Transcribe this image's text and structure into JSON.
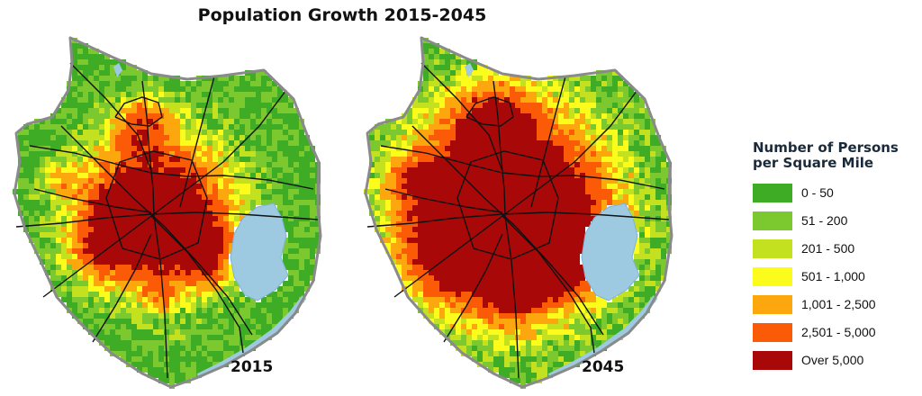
{
  "title": "Population Growth 2015-2045",
  "maps": [
    {
      "year": "2015",
      "intensity": 0.0
    },
    {
      "year": "2045",
      "intensity": 1.0
    }
  ],
  "legend": {
    "title_line1": "Number of Persons",
    "title_line2": "per Square Mile",
    "items": [
      {
        "label": "0 - 50",
        "color": "#3fac26"
      },
      {
        "label": "51 - 200",
        "color": "#7cc92f"
      },
      {
        "label": "201 - 500",
        "color": "#c3e11e"
      },
      {
        "label": "501 - 1,000",
        "color": "#fbfb1c"
      },
      {
        "label": "1,001 - 2,500",
        "color": "#fda70e"
      },
      {
        "label": "2,501 - 5,000",
        "color": "#fb5b07"
      },
      {
        "label": "Over 5,000",
        "color": "#a80808"
      }
    ]
  },
  "colors": {
    "water": "#9ecae1",
    "boundary": "#8a8a8a",
    "roads": "#111111"
  }
}
